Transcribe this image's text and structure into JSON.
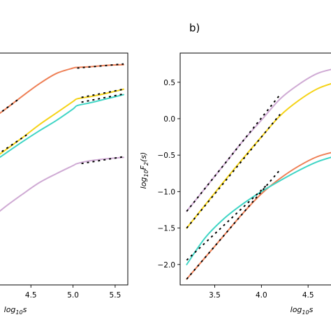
{
  "figure": {
    "panel_b_label": "b)"
  },
  "colors": {
    "orange": "#EE7F55",
    "yellow": "#F5D317",
    "turquoise": "#3FD5C5",
    "lilac": "#CFAAD4",
    "fit": "#000000",
    "axis": "#000000"
  },
  "chart_data": [
    {
      "panel": "a",
      "type": "line",
      "title": "",
      "xlabel": "log10s",
      "xlabel_parts": {
        "pre": "log",
        "sub": "10",
        "post": "s"
      },
      "ylabel": "",
      "xlim": [
        4.1,
        5.65
      ],
      "ylim": [
        -2.4,
        1.0
      ],
      "xticks": [
        4.5,
        5.0,
        5.5
      ],
      "xtick_labels": [
        "4.5",
        "5.0",
        "5.5"
      ],
      "grid": false,
      "series": [
        {
          "color": "orange",
          "x": [
            4.0,
            4.2,
            4.4,
            4.6,
            4.8,
            5.0,
            5.05,
            5.2,
            5.4,
            5.6
          ],
          "y": [
            0.0,
            0.18,
            0.37,
            0.55,
            0.7,
            0.78,
            0.79,
            0.8,
            0.82,
            0.83
          ]
        },
        {
          "color": "yellow",
          "x": [
            4.0,
            4.2,
            4.4,
            4.6,
            4.8,
            5.0,
            5.05,
            5.2,
            5.4,
            5.6
          ],
          "y": [
            -0.6,
            -0.42,
            -0.24,
            -0.05,
            0.12,
            0.29,
            0.33,
            0.36,
            0.41,
            0.47
          ]
        },
        {
          "color": "turquoise",
          "x": [
            4.0,
            4.2,
            4.4,
            4.6,
            4.8,
            5.0,
            5.05,
            5.2,
            5.4,
            5.6
          ],
          "y": [
            -0.64,
            -0.47,
            -0.3,
            -0.14,
            0.01,
            0.18,
            0.23,
            0.27,
            0.33,
            0.39
          ]
        },
        {
          "color": "lilac",
          "x": [
            4.0,
            4.2,
            4.4,
            4.6,
            4.8,
            5.0,
            5.05,
            5.2,
            5.4,
            5.6
          ],
          "y": [
            -1.45,
            -1.25,
            -1.07,
            -0.9,
            -0.77,
            -0.65,
            -0.62,
            -0.58,
            -0.55,
            -0.53
          ]
        }
      ],
      "fits": [
        {
          "x": [
            4.0,
            4.35
          ],
          "y": [
            0.0,
            0.32
          ]
        },
        {
          "x": [
            5.05,
            5.6
          ],
          "y": [
            0.78,
            0.84
          ]
        },
        {
          "x": [
            4.1,
            4.45
          ],
          "y": [
            -0.49,
            -0.2
          ]
        },
        {
          "x": [
            5.1,
            5.6
          ],
          "y": [
            0.28,
            0.4
          ]
        },
        {
          "x": [
            5.1,
            5.6
          ],
          "y": [
            0.35,
            0.47
          ]
        },
        {
          "x": [
            5.1,
            5.6
          ],
          "y": [
            -0.62,
            -0.52
          ]
        }
      ]
    },
    {
      "panel": "b",
      "type": "line",
      "title": "",
      "xlabel": "log10s",
      "xlabel_parts": {
        "pre": "log",
        "sub": "10",
        "post": "s"
      },
      "ylabel": "log10F2(s)",
      "ylabel_parts": {
        "pre": "log",
        "sub": "10",
        "mid": "F",
        "sub2": "2",
        "post": "(s)"
      },
      "xlim": [
        3.13,
        4.85
      ],
      "ylim": [
        -2.28,
        0.9
      ],
      "xticks": [
        3.5,
        4.0,
        4.5
      ],
      "xtick_labels": [
        "3.5",
        "4.0",
        "4.5"
      ],
      "yticks": [
        -2.0,
        -1.5,
        -1.0,
        -0.5,
        0.0,
        0.5
      ],
      "ytick_labels": [
        "−2.0",
        "−1.5",
        "−1.0",
        "−0.5",
        "0.0",
        "0.5"
      ],
      "grid": false,
      "series": [
        {
          "color": "lilac",
          "x": [
            3.2,
            3.4,
            3.6,
            3.8,
            4.0,
            4.2,
            4.4,
            4.6,
            4.8,
            4.9
          ],
          "y": [
            -1.27,
            -0.95,
            -0.63,
            -0.31,
            -0.02,
            0.27,
            0.47,
            0.62,
            0.69,
            0.71
          ]
        },
        {
          "color": "yellow",
          "x": [
            3.2,
            3.4,
            3.6,
            3.8,
            4.0,
            4.2,
            4.4,
            4.6,
            4.8,
            4.9
          ],
          "y": [
            -1.5,
            -1.18,
            -0.86,
            -0.55,
            -0.25,
            0.04,
            0.25,
            0.41,
            0.5,
            0.53
          ]
        },
        {
          "color": "orange",
          "x": [
            3.2,
            3.4,
            3.6,
            3.8,
            4.0,
            4.2,
            4.4,
            4.6,
            4.8,
            4.9
          ],
          "y": [
            -2.2,
            -1.9,
            -1.6,
            -1.3,
            -1.03,
            -0.82,
            -0.65,
            -0.52,
            -0.45,
            -0.43
          ]
        },
        {
          "color": "turquoise",
          "x": [
            3.2,
            3.4,
            3.6,
            3.8,
            4.0,
            4.2,
            4.4,
            4.6,
            4.8,
            4.9
          ],
          "y": [
            -2.0,
            -1.63,
            -1.37,
            -1.17,
            -1.0,
            -0.85,
            -0.71,
            -0.59,
            -0.51,
            -0.48
          ]
        }
      ],
      "fits": [
        {
          "x": [
            3.2,
            4.2
          ],
          "y": [
            -1.27,
            0.33
          ]
        },
        {
          "x": [
            3.2,
            4.2
          ],
          "y": [
            -1.5,
            0.06
          ]
        },
        {
          "x": [
            3.2,
            4.2
          ],
          "y": [
            -2.2,
            -0.7
          ]
        },
        {
          "x": [
            3.2,
            4.05
          ],
          "y": [
            -1.94,
            -0.92
          ]
        }
      ]
    }
  ]
}
